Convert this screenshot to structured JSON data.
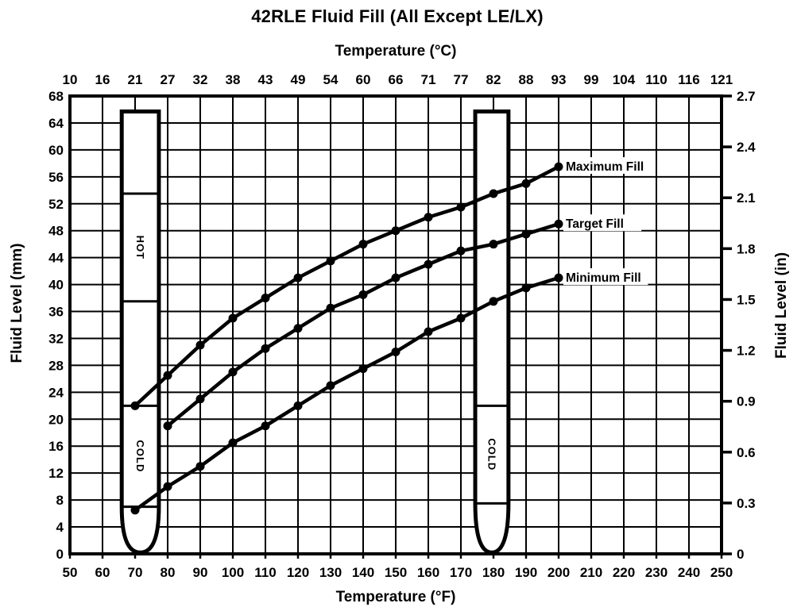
{
  "colors": {
    "ink": "#000000",
    "paper": "#ffffff"
  },
  "chart_data": {
    "type": "line",
    "title": "42RLE Fluid Fill (All Except LE/LX)",
    "grid": true,
    "legend_position": "inline-right-of-last-point",
    "top_axis": {
      "label": "Temperature (°C)",
      "tick_labels": [
        "10",
        "16",
        "21",
        "27",
        "32",
        "38",
        "43",
        "49",
        "54",
        "60",
        "66",
        "71",
        "77",
        "82",
        "88",
        "93",
        "99",
        "104",
        "110",
        "116",
        "121"
      ]
    },
    "bottom_axis": {
      "label": "Temperature (°F)",
      "min": 50,
      "max": 250,
      "ticks": [
        50,
        60,
        70,
        80,
        90,
        100,
        110,
        120,
        130,
        140,
        150,
        160,
        170,
        180,
        190,
        200,
        210,
        220,
        230,
        240,
        250
      ]
    },
    "left_axis": {
      "label": "Fluid Level (mm)",
      "min": 0,
      "max": 68,
      "ticks": [
        0,
        4,
        8,
        12,
        16,
        20,
        24,
        28,
        32,
        36,
        40,
        44,
        48,
        52,
        56,
        60,
        64,
        68
      ]
    },
    "right_axis": {
      "label": "Fluid Level (in)",
      "min": 0,
      "max": 2.7,
      "tick_labels": [
        "0",
        "0.3",
        "0.6",
        "0.9",
        "1.2",
        "1.5",
        "1.8",
        "2.1",
        "2.4",
        "2.7"
      ]
    },
    "series": [
      {
        "name": "Maximum Fill",
        "marker": "circle",
        "x": [
          70,
          80,
          90,
          100,
          110,
          120,
          130,
          140,
          150,
          160,
          170,
          180,
          190,
          200
        ],
        "y": [
          22,
          26.5,
          31,
          35,
          38,
          41,
          43.5,
          46,
          48,
          50,
          51.5,
          53.5,
          55,
          57.5
        ]
      },
      {
        "name": "Target Fill",
        "marker": "circle",
        "x": [
          80,
          90,
          100,
          110,
          120,
          130,
          140,
          150,
          160,
          170,
          180,
          190,
          200
        ],
        "y": [
          19,
          23,
          27,
          30.5,
          33.5,
          36.5,
          38.5,
          41,
          43,
          45,
          46,
          47.5,
          49
        ]
      },
      {
        "name": "Minimum Fill",
        "marker": "circle",
        "x": [
          70,
          80,
          90,
          100,
          110,
          120,
          130,
          140,
          150,
          160,
          170,
          180,
          190,
          200
        ],
        "y": [
          6.5,
          10,
          13,
          16.5,
          19,
          22,
          25,
          27.5,
          30,
          33,
          35,
          37.5,
          39.5,
          41
        ]
      }
    ],
    "dipsticks": [
      {
        "name": "cold-check-dipstick",
        "x_left_f": 65.9,
        "x_right_f": 77.3,
        "top_mm": 65.7,
        "shoulder_mm": 7,
        "tip_mm": 0.2,
        "divider_mm": [
          53.5,
          37.5,
          22,
          7
        ],
        "zones": [
          {
            "label": "HOT",
            "top_mm": 53.5,
            "bottom_mm": 37.5
          },
          {
            "label": "COLD",
            "top_mm": 22,
            "bottom_mm": 7
          }
        ]
      },
      {
        "name": "hot-check-dipstick",
        "x_left_f": 174.4,
        "x_right_f": 184.6,
        "top_mm": 65.7,
        "shoulder_mm": 7.5,
        "tip_mm": 0.2,
        "divider_mm": [
          22,
          7.5
        ],
        "zones": [
          {
            "label": "COLD",
            "top_mm": 22,
            "bottom_mm": 7.5
          }
        ]
      }
    ]
  }
}
